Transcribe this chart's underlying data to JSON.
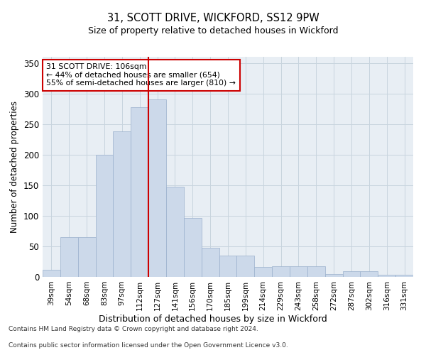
{
  "title1": "31, SCOTT DRIVE, WICKFORD, SS12 9PW",
  "title2": "Size of property relative to detached houses in Wickford",
  "xlabel": "Distribution of detached houses by size in Wickford",
  "ylabel": "Number of detached properties",
  "bar_color": "#ccd9ea",
  "bar_edgecolor": "#9ab0cc",
  "grid_color": "#c8d4de",
  "background_color": "#e8eef4",
  "property_line_color": "#cc0000",
  "annotation_box_color": "#cc0000",
  "categories": [
    "39sqm",
    "54sqm",
    "68sqm",
    "83sqm",
    "97sqm",
    "112sqm",
    "127sqm",
    "141sqm",
    "156sqm",
    "170sqm",
    "185sqm",
    "199sqm",
    "214sqm",
    "229sqm",
    "243sqm",
    "258sqm",
    "272sqm",
    "287sqm",
    "302sqm",
    "316sqm",
    "331sqm"
  ],
  "values": [
    12,
    65,
    65,
    200,
    238,
    278,
    290,
    148,
    96,
    48,
    35,
    35,
    16,
    18,
    18,
    18,
    5,
    9,
    9,
    4,
    3
  ],
  "property_bar_index": 5,
  "annotation_title": "31 SCOTT DRIVE: 106sqm",
  "annotation_line1": "← 44% of detached houses are smaller (654)",
  "annotation_line2": "55% of semi-detached houses are larger (810) →",
  "ylim": [
    0,
    360
  ],
  "yticks": [
    0,
    50,
    100,
    150,
    200,
    250,
    300,
    350
  ],
  "footnote1": "Contains HM Land Registry data © Crown copyright and database right 2024.",
  "footnote2": "Contains public sector information licensed under the Open Government Licence v3.0."
}
